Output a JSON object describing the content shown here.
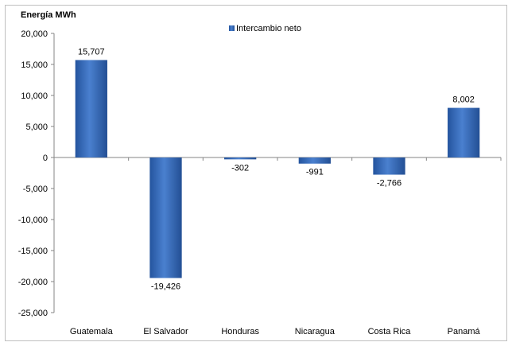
{
  "chart_data": {
    "type": "bar",
    "ylabel": "Energía MWh",
    "categories": [
      "Guatemala",
      "El Salvador",
      "Honduras",
      "Nicaragua",
      "Costa Rica",
      "Panamá"
    ],
    "series": [
      {
        "name": "Intercambio neto",
        "values": [
          15707,
          -19426,
          -302,
          -991,
          -2766,
          8002
        ],
        "labels": [
          "15,707",
          "-19,426",
          "-302",
          "-991",
          "-2,766",
          "8,002"
        ],
        "color": "#3a6fc0"
      }
    ],
    "ylim": [
      -25000,
      20000
    ],
    "yticks": [
      20000,
      15000,
      10000,
      5000,
      0,
      -5000,
      -10000,
      -15000,
      -20000,
      -25000
    ],
    "ytick_labels": [
      "20,000",
      "15,000",
      "10,000",
      "5,000",
      "0",
      "-5,000",
      "-10,000",
      "-15,000",
      "-20,000",
      "-25,000"
    ],
    "grid": false,
    "legend_position": "top-center"
  }
}
